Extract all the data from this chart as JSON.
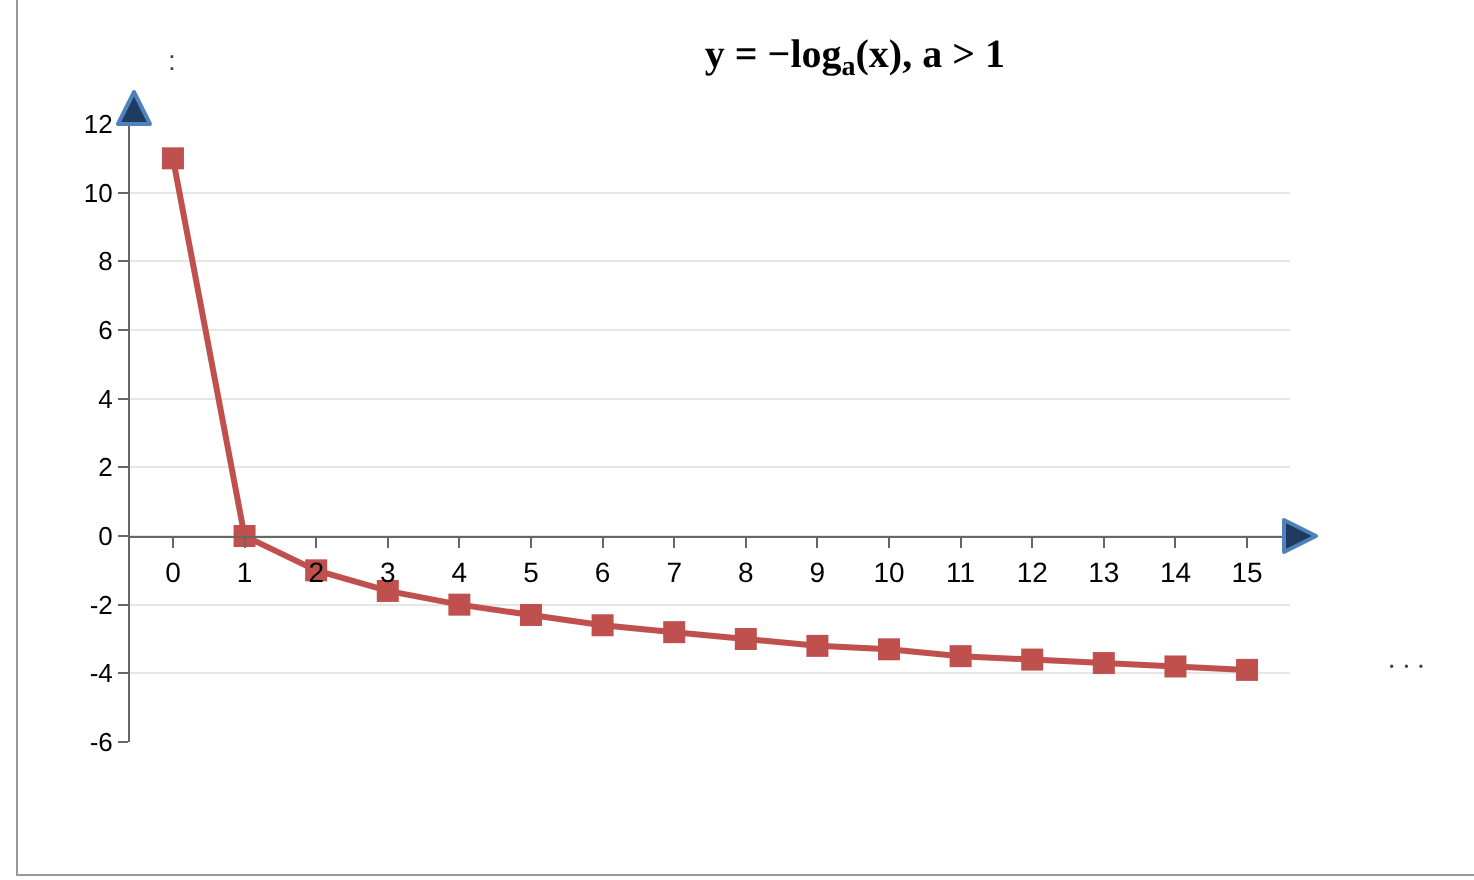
{
  "chart_data": {
    "type": "line",
    "title": "y = −log$_{a}$(x), a > 1",
    "x": [
      0,
      1,
      2,
      3,
      4,
      5,
      6,
      7,
      8,
      9,
      10,
      11,
      12,
      13,
      14,
      15
    ],
    "series": [
      {
        "color": "#c0504d",
        "values": [
          11,
          0,
          -1,
          -1.6,
          -2,
          -2.3,
          -2.6,
          -2.8,
          -3,
          -3.2,
          -3.3,
          -3.5,
          -3.6,
          -3.7,
          -3.8,
          -3.9
        ]
      }
    ],
    "xlim": [
      -0.6,
      15.6
    ],
    "xticks": [
      0,
      1,
      2,
      3,
      4,
      5,
      6,
      7,
      8,
      9,
      10,
      11,
      12,
      13,
      14,
      15
    ],
    "ylim": [
      -6,
      12
    ],
    "yticks": [
      -6,
      -4,
      -2,
      0,
      2,
      4,
      6,
      8,
      10,
      12
    ],
    "grid": "y",
    "marker": "square",
    "line_style": "solid",
    "annotations": [
      "· · ·",
      ":"
    ]
  }
}
